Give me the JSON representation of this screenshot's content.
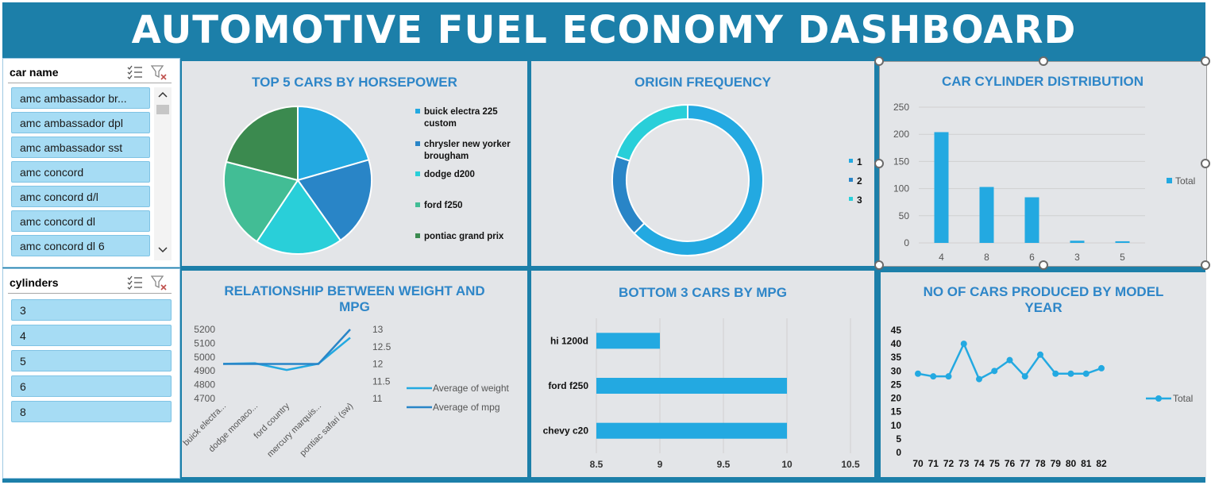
{
  "dashboard": {
    "title": "AUTOMOTIVE FUEL ECONOMY DASHBOARD",
    "colors": {
      "frame": "#1c7fa9",
      "panel": "#e3e5e8",
      "title_text": "#2e86c8",
      "slicer_item": "#a6dcf4"
    }
  },
  "slicers": {
    "car_name": {
      "title": "car name",
      "items": [
        "amc ambassador br...",
        "amc ambassador dpl",
        "amc ambassador sst",
        "amc concord",
        "amc concord d/l",
        "amc concord dl",
        "amc concord dl 6"
      ]
    },
    "cylinders": {
      "title": "cylinders",
      "items": [
        "3",
        "4",
        "5",
        "6",
        "8"
      ]
    }
  },
  "chart_data": [
    {
      "id": "top5_hp",
      "type": "pie",
      "title": "TOP 5 CARS BY HORSEPOWER",
      "categories": [
        "buick electra 225 custom",
        "chrysler new yorker brougham",
        "dodge d200",
        "ford f250",
        "pontiac grand prix"
      ],
      "values": [
        225,
        215,
        210,
        215,
        230
      ],
      "colors": [
        "#23a9e1",
        "#2985c7",
        "#29cfd9",
        "#42bd95",
        "#3b8a4f"
      ],
      "legend": "right"
    },
    {
      "id": "origin_freq",
      "type": "pie",
      "subtype": "doughnut",
      "title": "ORIGIN FREQUENCY",
      "categories": [
        "1",
        "2",
        "3"
      ],
      "values": [
        249,
        70,
        79
      ],
      "colors": [
        "#23a9e1",
        "#2985c7",
        "#29cfd9"
      ],
      "legend": "right"
    },
    {
      "id": "cyl_dist",
      "type": "bar",
      "title": "CAR CYLINDER DISTRIBUTION",
      "categories": [
        "4",
        "8",
        "6",
        "3",
        "5"
      ],
      "series": [
        {
          "name": "Total",
          "values": [
            204,
            103,
            84,
            4,
            3
          ]
        }
      ],
      "ylim": [
        0,
        250
      ],
      "yticks": [
        0,
        50,
        100,
        150,
        200,
        250
      ],
      "grid": true,
      "legend": "right",
      "color": "#23a9e1"
    },
    {
      "id": "weight_mpg",
      "type": "line",
      "title": "RELATIONSHIP BETWEEN WEIGHT AND MPG",
      "categories": [
        "buick electra...",
        "dodge monaco...",
        "ford country",
        "mercury marquis...",
        "pontiac safari (sw)"
      ],
      "series": [
        {
          "name": "Average of weight",
          "axis": "left",
          "values": [
            4951,
            4955,
            4906,
            4952,
            5140
          ],
          "color": "#23a9e1"
        },
        {
          "name": "Average of mpg",
          "axis": "right",
          "values": [
            12,
            12,
            12,
            12,
            13
          ],
          "color": "#2985c7"
        }
      ],
      "ylim_left": [
        4700,
        5200
      ],
      "yticks_left": [
        4700,
        4800,
        4900,
        5000,
        5100,
        5200
      ],
      "ylim_right": [
        11,
        13
      ],
      "yticks_right": [
        "11",
        "11.5",
        "12",
        "12.5",
        "13"
      ],
      "legend": "right"
    },
    {
      "id": "bottom3_mpg",
      "type": "bar",
      "orientation": "horizontal",
      "title": "BOTTOM 3 CARS BY MPG",
      "categories": [
        "hi 1200d",
        "ford f250",
        "chevy c20"
      ],
      "values": [
        9,
        10,
        10
      ],
      "xlim": [
        8.5,
        10.5
      ],
      "xticks": [
        "8.5",
        "9",
        "9.5",
        "10",
        "10.5"
      ],
      "grid": true,
      "color": "#23a9e1"
    },
    {
      "id": "model_year",
      "type": "line",
      "title": "NO OF CARS PRODUCED BY MODEL YEAR",
      "categories": [
        "70",
        "71",
        "72",
        "73",
        "74",
        "75",
        "76",
        "77",
        "78",
        "79",
        "80",
        "81",
        "82"
      ],
      "series": [
        {
          "name": "Total",
          "values": [
            29,
            28,
            28,
            40,
            27,
            30,
            34,
            28,
            36,
            29,
            29,
            29,
            31
          ]
        }
      ],
      "ylim": [
        0,
        45
      ],
      "yticks": [
        0,
        5,
        10,
        15,
        20,
        25,
        30,
        35,
        40,
        45
      ],
      "legend": "right",
      "color": "#23a9e1"
    }
  ]
}
